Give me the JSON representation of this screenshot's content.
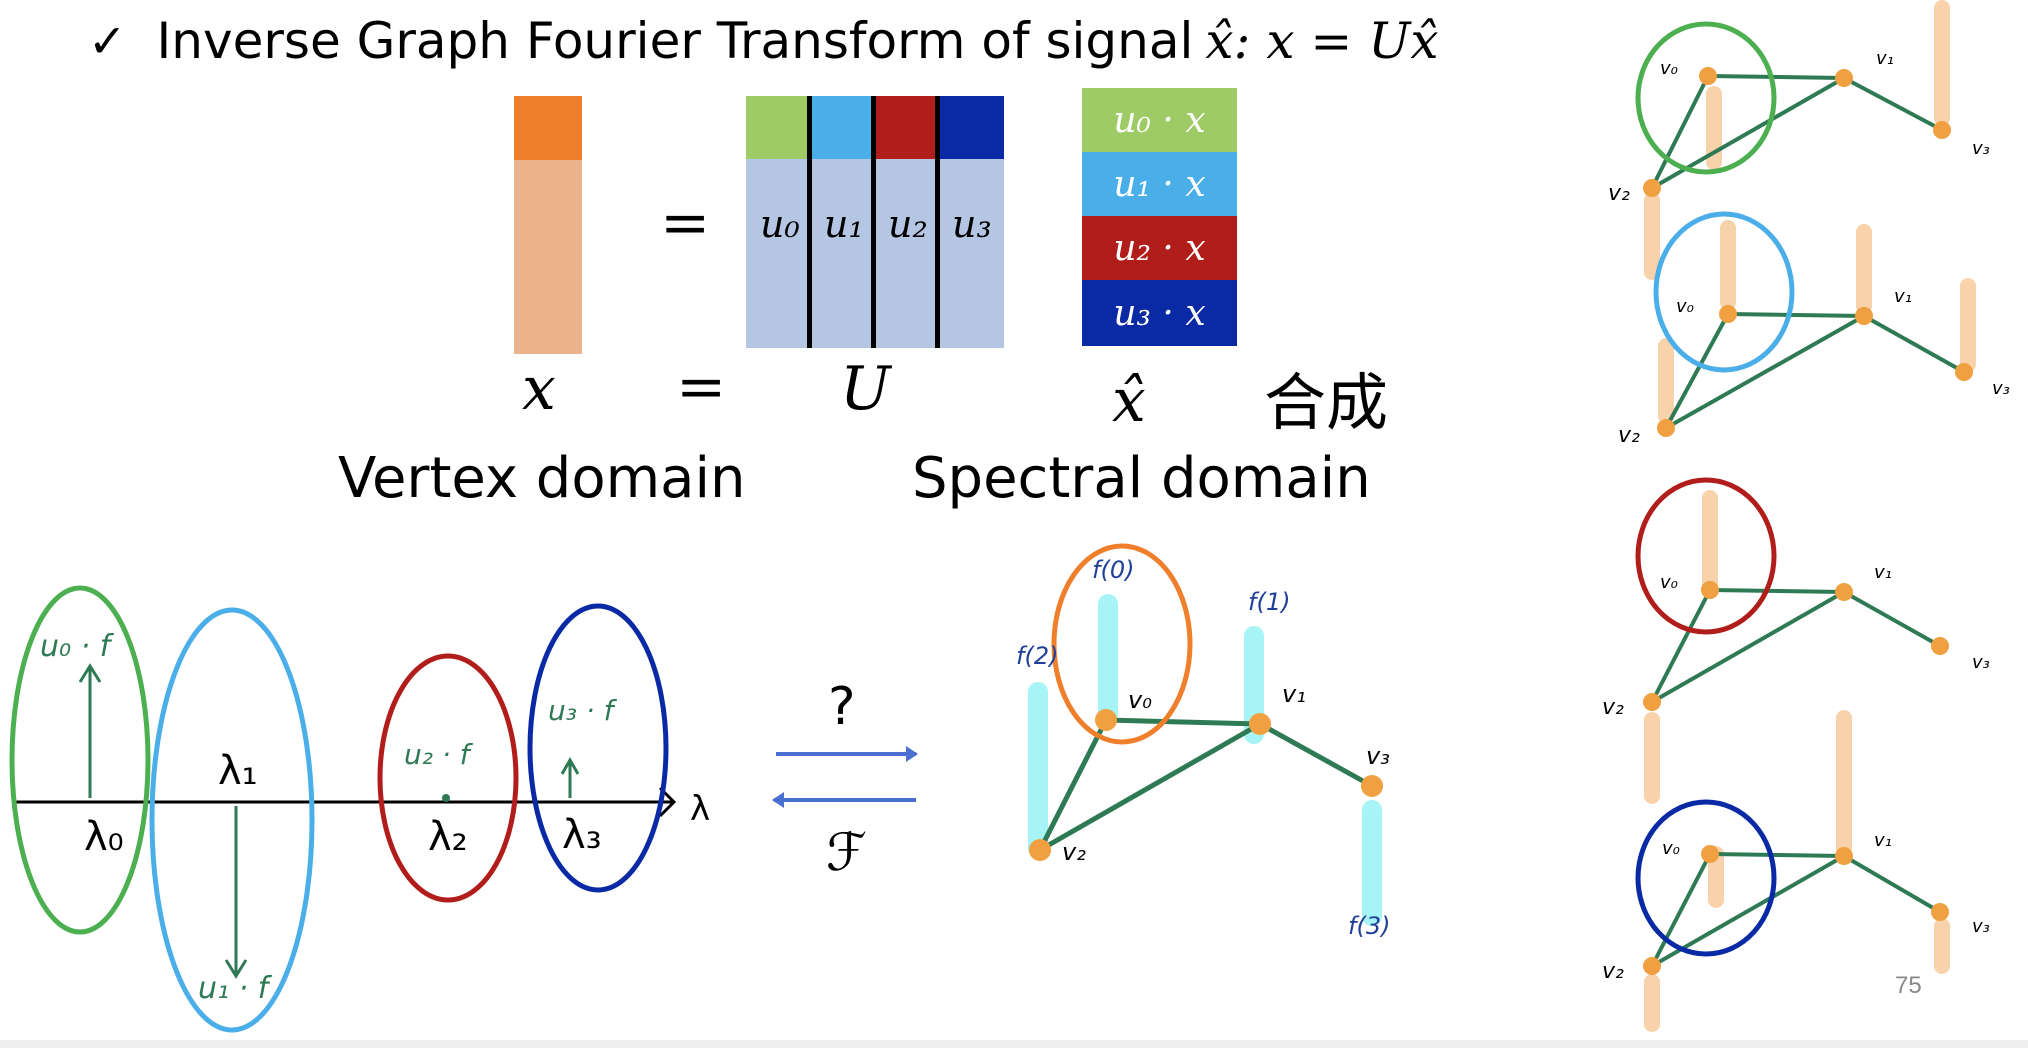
{
  "title": {
    "check": "✓",
    "text": "Inverse Graph Fourier Transform of signal",
    "formula": "x̂: x = Ux̂"
  },
  "equation": {
    "equals": "=",
    "vector_label": "x",
    "matrix_label": "U",
    "spectrum_label": "x̂",
    "chinese_label": "合成",
    "u_columns": [
      "u₀",
      "u₁",
      "u₂",
      "u₃"
    ],
    "spectrum_cells": [
      "u₀ · x",
      "u₁ · x",
      "u₂ · x",
      "u₃ · x"
    ]
  },
  "domains": {
    "vertex": "Vertex domain",
    "spectral": "Spectral domain"
  },
  "spectrum_plot": {
    "axis_label": "λ",
    "eigenvalues": [
      "λ₀",
      "λ₁",
      "λ₂",
      "λ₃"
    ],
    "projections": [
      "u₀ · f",
      "u₁ · f",
      "u₂ · f",
      "u₃ · f"
    ]
  },
  "transform": {
    "question": "?",
    "fourier": "ℱ"
  },
  "graph": {
    "vertices": [
      "v₀",
      "v₁",
      "v₂",
      "v₃"
    ],
    "signals": [
      "f(0)",
      "f(1)",
      "f(2)",
      "f(3)"
    ]
  },
  "right_graphs": {
    "vertices": [
      "v₀",
      "v₁",
      "v₂",
      "v₃"
    ]
  },
  "page_number": "75",
  "colors": {
    "orange": "#f07f2c",
    "light_orange": "#ebb38c",
    "green": "#9ecb65",
    "green_circle": "#4caf50",
    "blue": "#4aaee8",
    "red": "#b11d1a",
    "navy": "#0a2aa5",
    "matrix_bg": "#b5c6e3",
    "edge": "#2e7a55",
    "node": "#f0a040",
    "signal_bar": "#f7d2aa",
    "cyan_bar": "#a6f4f6"
  }
}
